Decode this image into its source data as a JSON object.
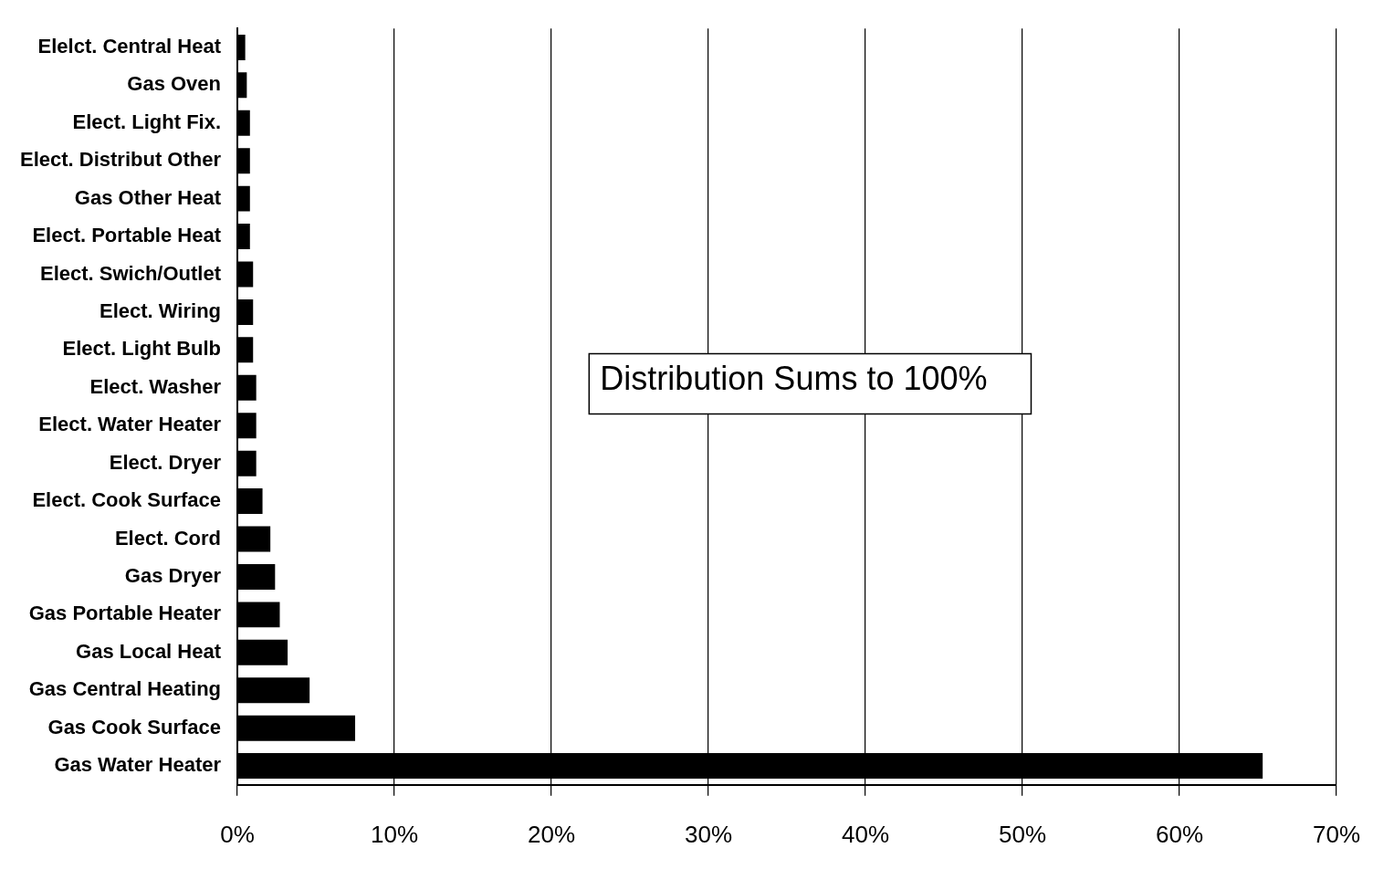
{
  "chart_data": {
    "type": "bar",
    "orientation": "horizontal",
    "color": "#000000",
    "categories": [
      "Elelct. Central Heat",
      "Gas Oven",
      "Elect. Light Fix.",
      "Elect. Distribut Other",
      "Gas Other Heat",
      "Elect. Portable Heat",
      "Elect. Swich/Outlet",
      "Elect. Wiring",
      "Elect. Light Bulb",
      "Elect. Washer",
      "Elect. Water Heater",
      "Elect. Dryer",
      "Elect. Cook Surface",
      "Elect. Cord",
      "Gas Dryer",
      "Gas Portable Heater",
      "Gas Local Heat",
      "Gas Central Heating",
      "Gas Cook Surface",
      "Gas Water Heater"
    ],
    "values": [
      0.5,
      0.6,
      0.8,
      0.8,
      0.8,
      0.8,
      1.0,
      1.0,
      1.0,
      1.2,
      1.2,
      1.2,
      1.6,
      2.1,
      2.4,
      2.7,
      3.2,
      4.6,
      7.5,
      65.3
    ],
    "xlim": [
      0,
      70
    ],
    "xticks": [
      {
        "value": 0,
        "label": "0%"
      },
      {
        "value": 10,
        "label": "10%"
      },
      {
        "value": 20,
        "label": "20%"
      },
      {
        "value": 30,
        "label": "30%"
      },
      {
        "value": 40,
        "label": "40%"
      },
      {
        "value": 50,
        "label": "50%"
      },
      {
        "value": 60,
        "label": "60%"
      },
      {
        "value": 70,
        "label": "70%"
      }
    ],
    "grid": "x",
    "annotations": [
      "Distribution Sums to 100%"
    ]
  }
}
